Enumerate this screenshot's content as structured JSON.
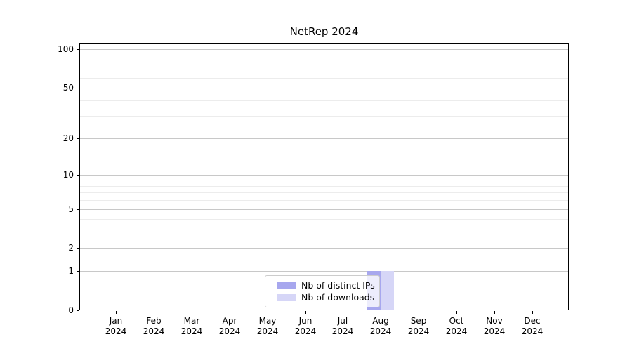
{
  "chart_data": {
    "type": "bar",
    "title": "NetRep 2024",
    "x_categories": [
      "Jan",
      "Feb",
      "Mar",
      "Apr",
      "May",
      "Jun",
      "Jul",
      "Aug",
      "Sep",
      "Oct",
      "Nov",
      "Dec"
    ],
    "x_year_label": "2024",
    "series": [
      {
        "name": "Nb of distinct IPs",
        "color": "#a7a7ee",
        "values": [
          0,
          0,
          0,
          0,
          0,
          0,
          0,
          1,
          0,
          0,
          0,
          0
        ]
      },
      {
        "name": "Nb of downloads",
        "color": "#d6d6f7",
        "values": [
          0,
          0,
          0,
          0,
          0,
          0,
          0,
          1,
          0,
          0,
          0,
          0
        ]
      }
    ],
    "yscale": "log1p",
    "ylim": [
      0,
      112
    ],
    "y_major_ticks": [
      0,
      1,
      2,
      5,
      10,
      20,
      50,
      100
    ],
    "y_minor_gridlines": [
      3,
      4,
      6,
      7,
      8,
      9,
      30,
      40,
      60,
      70,
      80,
      90
    ],
    "grid": "horizontal",
    "legend_position": "lower-center-inside",
    "colors": {
      "bar_distinct_ips": "#a7a7ee",
      "bar_downloads": "#d6d6f7",
      "major_grid": "#c8c8c8",
      "minor_grid": "#ececec",
      "spine": "#000000",
      "legend_border": "#cccccc"
    }
  }
}
